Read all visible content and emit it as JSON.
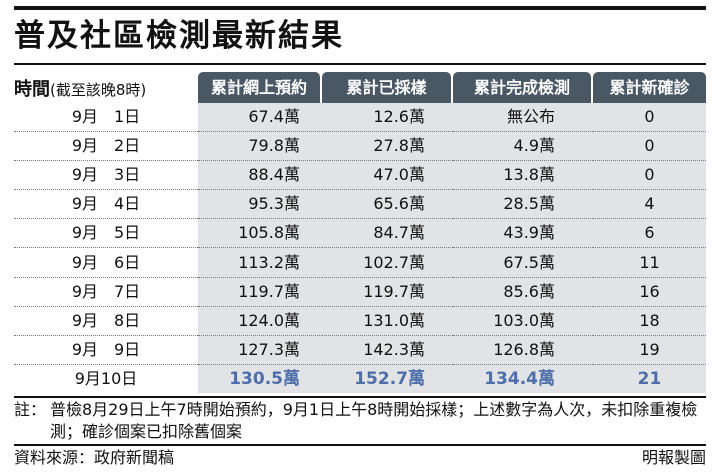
{
  "title": "普及社區檢測最新結果",
  "table": {
    "row_header_bold": "時間",
    "row_header_note": "(截至該晚8時)",
    "columns": [
      "累計網上預約",
      "累計已採樣",
      "累計完成檢測",
      "累計新確診"
    ],
    "rows": [
      {
        "date": "9月　1日",
        "booked": "67.4萬",
        "sampled": "12.6萬",
        "tested": "無公布",
        "confirmed": "0"
      },
      {
        "date": "9月　2日",
        "booked": "79.8萬",
        "sampled": "27.8萬",
        "tested": "4.9萬",
        "confirmed": "0"
      },
      {
        "date": "9月　3日",
        "booked": "88.4萬",
        "sampled": "47.0萬",
        "tested": "13.8萬",
        "confirmed": "0"
      },
      {
        "date": "9月　4日",
        "booked": "95.3萬",
        "sampled": "65.6萬",
        "tested": "28.5萬",
        "confirmed": "4"
      },
      {
        "date": "9月　5日",
        "booked": "105.8萬",
        "sampled": "84.7萬",
        "tested": "43.9萬",
        "confirmed": "6"
      },
      {
        "date": "9月　6日",
        "booked": "113.2萬",
        "sampled": "102.7萬",
        "tested": "67.5萬",
        "confirmed": "11"
      },
      {
        "date": "9月　7日",
        "booked": "119.7萬",
        "sampled": "119.7萬",
        "tested": "85.6萬",
        "confirmed": "16"
      },
      {
        "date": "9月　8日",
        "booked": "124.0萬",
        "sampled": "131.0萬",
        "tested": "103.0萬",
        "confirmed": "18"
      },
      {
        "date": "9月　9日",
        "booked": "127.3萬",
        "sampled": "142.3萬",
        "tested": "126.8萬",
        "confirmed": "19"
      },
      {
        "date": "9月10日",
        "booked": "130.5萬",
        "sampled": "152.7萬",
        "tested": "134.4萬",
        "confirmed": "21"
      }
    ],
    "highlight_color": "#4d6ea8",
    "header_color": "#4a5866",
    "cell_shade": "#e2e3e6"
  },
  "note_label": "註：",
  "note_text": "普檢8月29日上午7時開始預約，9月1日上午8時開始採樣；上述數字為人次，未扣除重複檢測；確診個案已扣除舊個案",
  "source": "資料來源：政府新聞稿",
  "credit": "明報製圖"
}
